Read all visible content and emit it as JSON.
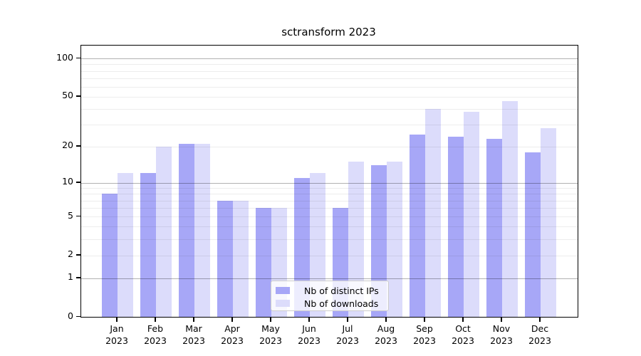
{
  "chart_data": {
    "type": "bar",
    "title": "sctransform 2023",
    "categories": [
      "Jan",
      "Feb",
      "Mar",
      "Apr",
      "May",
      "Jun",
      "Jul",
      "Aug",
      "Sep",
      "Oct",
      "Nov",
      "Dec"
    ],
    "category_year": "2023",
    "series": [
      {
        "name": "Nb of distinct IPs",
        "key": "ips",
        "color": "#a7a7f7",
        "values": [
          8,
          12,
          21,
          7,
          6,
          11,
          6,
          14,
          25,
          24,
          23,
          18
        ]
      },
      {
        "name": "Nb of downloads",
        "key": "downloads",
        "color": "#dcdcfb",
        "values": [
          12,
          20,
          21,
          7,
          6,
          12,
          15,
          15,
          40,
          38,
          46,
          28
        ]
      }
    ],
    "xlabel": "",
    "ylabel": "",
    "y_scale": "log1p",
    "y_tick_labels": [
      0,
      1,
      2,
      5,
      10,
      20,
      50,
      100
    ],
    "y_minor_gridlines": [
      2,
      3,
      4,
      5,
      6,
      7,
      8,
      9,
      20,
      30,
      40,
      50,
      60,
      70,
      80,
      90
    ],
    "y_major_gridlines": [
      1,
      10,
      100
    ],
    "ylim": [
      0,
      125
    ],
    "grid": "on",
    "legend_position": "lower center"
  }
}
